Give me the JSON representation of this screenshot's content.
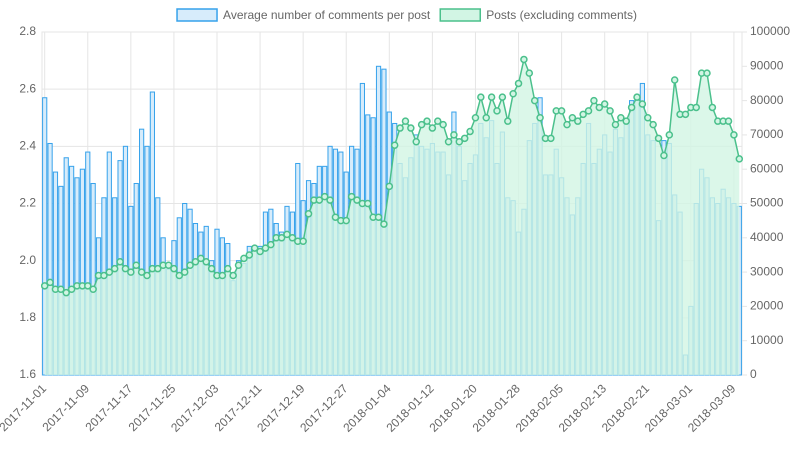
{
  "chart_data": {
    "type": "bar+line",
    "legend": "top",
    "grid": true,
    "categories": [
      "2017-11-01",
      null,
      null,
      null,
      null,
      null,
      null,
      null,
      "2017-11-09",
      null,
      null,
      null,
      null,
      null,
      null,
      null,
      "2017-11-17",
      null,
      null,
      null,
      null,
      null,
      null,
      null,
      "2017-11-25",
      null,
      null,
      null,
      null,
      null,
      null,
      null,
      "2017-12-03",
      null,
      null,
      null,
      null,
      null,
      null,
      null,
      "2017-12-11",
      null,
      null,
      null,
      null,
      null,
      null,
      null,
      "2017-12-19",
      null,
      null,
      null,
      null,
      null,
      null,
      null,
      "2017-12-27",
      null,
      null,
      null,
      null,
      null,
      null,
      null,
      "2018-01-04",
      null,
      null,
      null,
      null,
      null,
      null,
      null,
      "2018-01-12",
      null,
      null,
      null,
      null,
      null,
      null,
      null,
      "2018-01-20",
      null,
      null,
      null,
      null,
      null,
      null,
      null,
      "2018-01-28",
      null,
      null,
      null,
      null,
      null,
      null,
      null,
      "2018-02-05",
      null,
      null,
      null,
      null,
      null,
      null,
      null,
      "2018-02-13",
      null,
      null,
      null,
      null,
      null,
      null,
      null,
      "2018-02-21",
      null,
      null,
      null,
      null,
      null,
      null,
      null,
      "2018-03-01",
      null,
      null,
      null,
      null,
      null,
      null,
      null,
      "2018-03-09",
      null
    ],
    "series": [
      {
        "name": "Average number of comments per post",
        "type": "bar",
        "axis": "y",
        "color": "#36a2eb",
        "fill": "#d7ecfb",
        "values": [
          2.57,
          2.41,
          2.31,
          2.26,
          2.36,
          2.33,
          2.29,
          2.32,
          2.38,
          2.27,
          2.08,
          2.22,
          2.38,
          2.22,
          2.35,
          2.4,
          2.19,
          2.27,
          2.46,
          2.4,
          2.59,
          2.22,
          2.08,
          1.97,
          2.07,
          2.15,
          2.2,
          2.18,
          2.13,
          2.1,
          2.12,
          2.0,
          2.11,
          2.08,
          2.06,
          1.93,
          2.0,
          1.99,
          2.05,
          2.04,
          2.05,
          2.17,
          2.18,
          2.13,
          2.1,
          2.19,
          2.17,
          2.34,
          2.21,
          2.28,
          2.27,
          2.33,
          2.33,
          2.4,
          2.39,
          2.38,
          2.31,
          2.4,
          2.39,
          2.62,
          2.51,
          2.5,
          2.68,
          2.67,
          2.52,
          2.48,
          2.34,
          2.29,
          2.36,
          2.44,
          2.4,
          2.39,
          2.41,
          2.38,
          2.38,
          2.3,
          2.52,
          2.4,
          2.28,
          2.34,
          2.37,
          2.48,
          2.43,
          2.49,
          2.34,
          2.45,
          2.22,
          2.21,
          2.1,
          2.18,
          2.42,
          2.48,
          2.57,
          2.3,
          2.3,
          2.39,
          2.29,
          2.22,
          2.16,
          2.22,
          2.34,
          2.48,
          2.34,
          2.39,
          2.44,
          2.38,
          2.46,
          2.43,
          2.49,
          2.56,
          2.56,
          2.62,
          2.44,
          2.42,
          2.14,
          2.42,
          2.41,
          2.23,
          2.17,
          1.67,
          1.84,
          2.2,
          2.32,
          2.29,
          2.22,
          2.2,
          2.25,
          2.22,
          2.2,
          2.19
        ]
      },
      {
        "name": "Posts (excluding comments)",
        "type": "line",
        "axis": "y2",
        "color": "#4bc08c",
        "fill": "#d2f5e4",
        "values": [
          26000,
          27000,
          25000,
          25000,
          24000,
          25000,
          26000,
          26000,
          26000,
          25000,
          29000,
          29000,
          30000,
          31000,
          33000,
          31000,
          30000,
          32000,
          30000,
          29000,
          31000,
          31000,
          32000,
          32000,
          31000,
          29000,
          30000,
          32000,
          33000,
          34000,
          33000,
          31000,
          29000,
          29000,
          31000,
          29000,
          32000,
          34000,
          35000,
          37000,
          36000,
          37000,
          38000,
          40000,
          40000,
          41000,
          40000,
          39000,
          39000,
          47000,
          51000,
          51000,
          52000,
          51000,
          46000,
          45000,
          45000,
          52000,
          51000,
          50000,
          50000,
          46000,
          46000,
          44000,
          55000,
          67000,
          72000,
          74000,
          72000,
          68000,
          73000,
          74000,
          72000,
          74000,
          73000,
          68000,
          70000,
          68000,
          69000,
          71000,
          75000,
          81000,
          75000,
          81000,
          77000,
          81000,
          74000,
          82000,
          85000,
          92000,
          88000,
          80000,
          75000,
          69000,
          69000,
          77000,
          77000,
          73000,
          75000,
          74000,
          76000,
          77000,
          80000,
          78000,
          79000,
          77000,
          73000,
          75000,
          74000,
          78000,
          81000,
          79000,
          75000,
          73000,
          69000,
          64000,
          70000,
          86000,
          76000,
          76000,
          78000,
          78000,
          88000,
          88000,
          78000,
          74000,
          74000,
          74000,
          70000,
          63000
        ]
      }
    ],
    "ylim": [
      1.6,
      2.8
    ],
    "yticks": [
      1.6,
      1.8,
      {
        "value": 2,
        "label": "2.0"
      },
      2.2,
      2.4,
      2.6,
      2.8
    ],
    "y2lim": [
      0,
      100000
    ],
    "y2ticks": [
      0,
      10000,
      20000,
      30000,
      40000,
      50000,
      60000,
      70000,
      80000,
      90000,
      100000
    ]
  }
}
